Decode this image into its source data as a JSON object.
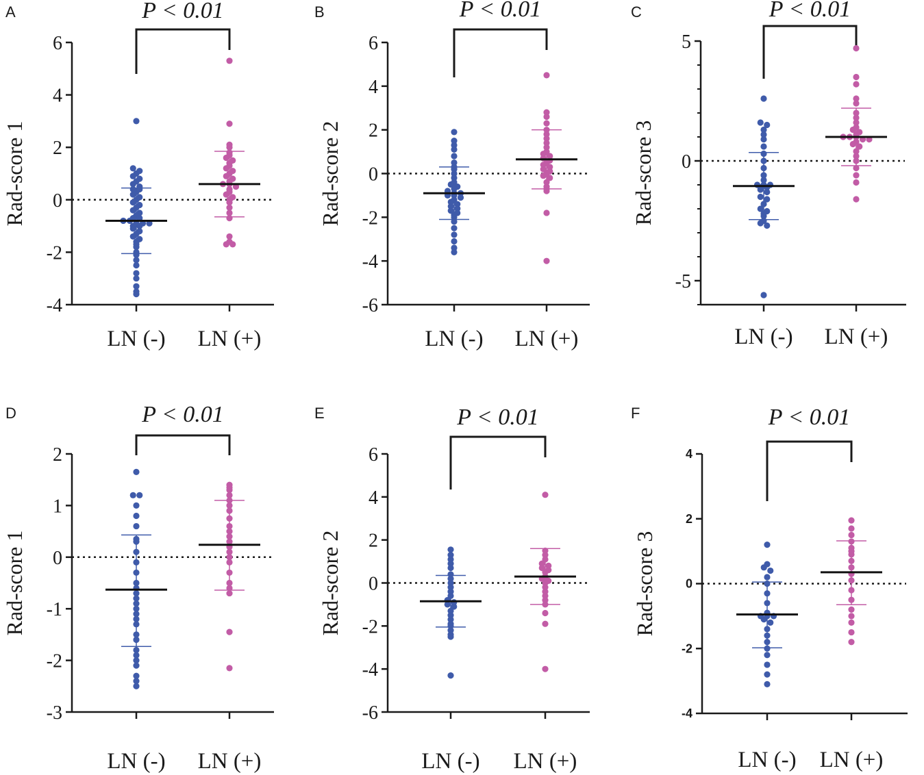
{
  "colors": {
    "ln_neg": "#3f5baa",
    "ln_pos": "#c25ca6",
    "mean_line": "#111111",
    "axis": "#1a1a1a"
  },
  "chart_data": [
    {
      "panel": "A",
      "type": "scatter",
      "title": "P < 0.01",
      "ylabel": "Rad-score 1",
      "ylim": [
        -4,
        6
      ],
      "yticks": [
        6,
        4,
        2,
        0,
        -2,
        -4
      ],
      "categories": [
        "LN (-)",
        "LN (+)"
      ],
      "reference_line": 0,
      "series": [
        {
          "name": "LN (-)",
          "mean": -0.8,
          "sd_upper": 0.45,
          "sd_lower": -2.05,
          "values": [
            3.0,
            1.2,
            1.1,
            1.0,
            0.9,
            0.8,
            0.7,
            0.6,
            0.5,
            0.4,
            0.4,
            0.3,
            0.2,
            0.1,
            0.0,
            -0.1,
            -0.2,
            -0.3,
            -0.4,
            -0.5,
            -0.6,
            -0.7,
            -0.7,
            -0.8,
            -0.8,
            -0.9,
            -0.9,
            -0.9,
            -1.0,
            -1.0,
            -1.1,
            -1.2,
            -1.3,
            -1.4,
            -1.5,
            -1.6,
            -1.7,
            -1.8,
            -2.0,
            -2.1,
            -2.3,
            -2.5,
            -2.8,
            -3.0,
            -3.3,
            -3.5,
            -3.6
          ]
        },
        {
          "name": "LN (+)",
          "mean": 0.6,
          "sd_upper": 1.85,
          "sd_lower": -0.65,
          "values": [
            5.3,
            2.9,
            2.1,
            2.0,
            1.8,
            1.7,
            1.6,
            1.5,
            1.4,
            1.3,
            1.2,
            1.1,
            1.0,
            0.9,
            0.8,
            0.7,
            0.6,
            0.6,
            0.5,
            0.4,
            0.3,
            0.2,
            0.1,
            0.0,
            -0.1,
            -0.3,
            -0.5,
            -0.7,
            -1.4,
            -1.6,
            -1.7,
            -1.7
          ]
        }
      ]
    },
    {
      "panel": "B",
      "type": "scatter",
      "title": "P < 0.01",
      "ylabel": "Rad-score 2",
      "ylim": [
        -6,
        6
      ],
      "yticks": [
        6,
        4,
        2,
        0,
        -2,
        -4,
        -6
      ],
      "categories": [
        "LN (-)",
        "LN (+)"
      ],
      "reference_line": 0,
      "series": [
        {
          "name": "LN (-)",
          "mean": -0.9,
          "sd_upper": 0.3,
          "sd_lower": -2.1,
          "values": [
            1.9,
            1.5,
            1.3,
            1.1,
            0.8,
            0.5,
            0.3,
            0.2,
            0.0,
            -0.2,
            -0.4,
            -0.5,
            -0.6,
            -0.7,
            -0.8,
            -0.9,
            -0.9,
            -1.0,
            -1.0,
            -1.1,
            -1.2,
            -1.3,
            -1.4,
            -1.5,
            -1.6,
            -1.7,
            -1.8,
            -1.9,
            -2.0,
            -2.2,
            -2.5,
            -2.8,
            -3.1,
            -3.4,
            -3.6
          ]
        },
        {
          "name": "LN (+)",
          "mean": 0.65,
          "sd_upper": 2.0,
          "sd_lower": -0.7,
          "values": [
            4.5,
            2.8,
            2.6,
            2.3,
            2.0,
            1.8,
            1.6,
            1.4,
            1.2,
            1.0,
            0.9,
            0.8,
            0.7,
            0.6,
            0.5,
            0.4,
            0.3,
            0.2,
            0.1,
            0.0,
            -0.1,
            -0.2,
            -0.4,
            -0.6,
            -0.7,
            -0.8,
            -1.8,
            -4.0
          ]
        }
      ]
    },
    {
      "panel": "C",
      "type": "scatter",
      "title": "P < 0.01",
      "ylabel": "Rad-score 3",
      "ylim": [
        -6,
        5
      ],
      "yticks": [
        5,
        0,
        -5
      ],
      "categories": [
        "LN (-)",
        "LN (+)"
      ],
      "reference_line": 0,
      "series": [
        {
          "name": "LN (-)",
          "mean": -1.05,
          "sd_upper": 0.35,
          "sd_lower": -2.45,
          "values": [
            2.6,
            1.6,
            1.5,
            1.3,
            1.1,
            0.9,
            0.6,
            0.3,
            0.0,
            -0.3,
            -0.6,
            -0.8,
            -1.0,
            -1.0,
            -1.0,
            -1.1,
            -1.1,
            -1.2,
            -1.3,
            -1.5,
            -1.6,
            -1.8,
            -2.0,
            -2.1,
            -2.2,
            -2.3,
            -2.5,
            -2.6,
            -2.7,
            -5.6
          ]
        },
        {
          "name": "LN (+)",
          "mean": 1.0,
          "sd_upper": 2.2,
          "sd_lower": -0.2,
          "values": [
            4.7,
            3.5,
            3.2,
            2.6,
            2.4,
            2.0,
            1.8,
            1.6,
            1.4,
            1.3,
            1.2,
            1.1,
            1.0,
            1.0,
            1.0,
            0.9,
            0.9,
            0.8,
            0.7,
            0.6,
            0.4,
            0.2,
            0.0,
            -0.3,
            -0.6,
            -0.9,
            -1.6
          ]
        }
      ]
    },
    {
      "panel": "D",
      "type": "scatter",
      "title": "P < 0.01",
      "ylabel": "Rad-score 1",
      "ylim": [
        -3,
        2
      ],
      "yticks": [
        2,
        1,
        0,
        -1,
        -2,
        -3
      ],
      "categories": [
        "LN (-)",
        "LN (+)"
      ],
      "reference_line": 0,
      "series": [
        {
          "name": "LN (-)",
          "mean": -0.63,
          "sd_upper": 0.43,
          "sd_lower": -1.73,
          "values": [
            1.65,
            1.2,
            1.2,
            1.0,
            0.8,
            0.6,
            0.35,
            0.3,
            0.1,
            -0.1,
            -0.3,
            -0.5,
            -0.6,
            -0.7,
            -0.8,
            -0.9,
            -1.0,
            -1.1,
            -1.2,
            -1.3,
            -1.5,
            -1.6,
            -1.8,
            -1.9,
            -2.0,
            -2.1,
            -2.3,
            -2.4,
            -2.5
          ]
        },
        {
          "name": "LN (+)",
          "mean": 0.24,
          "sd_upper": 1.1,
          "sd_lower": -0.64,
          "values": [
            1.4,
            1.35,
            1.3,
            1.2,
            1.1,
            1.0,
            0.9,
            0.75,
            0.6,
            0.5,
            0.4,
            0.3,
            0.2,
            0.1,
            0.0,
            -0.1,
            -0.3,
            -0.5,
            -0.6,
            -0.7,
            -1.45,
            -2.15
          ]
        }
      ]
    },
    {
      "panel": "E",
      "type": "scatter",
      "title": "P < 0.01",
      "ylabel": "Rad-score 2",
      "ylim": [
        -6,
        6
      ],
      "yticks": [
        6,
        4,
        2,
        0,
        -2,
        -4,
        -6
      ],
      "categories": [
        "LN (-)",
        "LN (+)"
      ],
      "reference_line": 0,
      "series": [
        {
          "name": "LN (-)",
          "mean": -0.85,
          "sd_upper": 0.35,
          "sd_lower": -2.05,
          "values": [
            1.55,
            1.3,
            1.1,
            0.9,
            0.7,
            0.4,
            0.2,
            0.0,
            -0.2,
            -0.4,
            -0.6,
            -0.8,
            -0.9,
            -1.0,
            -1.1,
            -1.3,
            -1.5,
            -1.7,
            -1.9,
            -2.0,
            -2.2,
            -2.4,
            -2.5,
            -4.3
          ]
        },
        {
          "name": "LN (+)",
          "mean": 0.3,
          "sd_upper": 1.6,
          "sd_lower": -1.0,
          "values": [
            4.1,
            1.5,
            1.3,
            1.1,
            0.9,
            0.8,
            0.7,
            0.6,
            0.5,
            0.3,
            0.2,
            0.1,
            0.0,
            -0.2,
            -0.4,
            -0.6,
            -0.8,
            -1.0,
            -1.4,
            -1.9,
            -4.0
          ]
        }
      ]
    },
    {
      "panel": "F",
      "type": "scatter",
      "title": "P < 0.01",
      "ylabel": "Rad-score 3",
      "ylim": [
        -4,
        4
      ],
      "yticks": [
        4,
        2,
        0,
        -2,
        -4
      ],
      "categories": [
        "LN (-)",
        "LN (+)"
      ],
      "reference_line": 0,
      "series": [
        {
          "name": "LN (-)",
          "mean": -0.95,
          "sd_upper": 0.05,
          "sd_lower": -1.98,
          "values": [
            1.2,
            0.6,
            0.5,
            0.4,
            0.2,
            0.0,
            -0.3,
            -0.6,
            -0.9,
            -1.0,
            -1.0,
            -1.0,
            -1.1,
            -1.2,
            -1.4,
            -1.6,
            -1.8,
            -2.0,
            -2.2,
            -2.5,
            -2.8,
            -3.1
          ]
        },
        {
          "name": "LN (+)",
          "mean": 0.35,
          "sd_upper": 1.32,
          "sd_lower": -0.65,
          "values": [
            1.95,
            1.7,
            1.5,
            1.3,
            1.1,
            1.0,
            0.9,
            0.7,
            0.5,
            0.3,
            0.1,
            -0.2,
            -0.5,
            -0.8,
            -1.0,
            -1.2,
            -1.5,
            -1.8
          ]
        }
      ]
    }
  ]
}
